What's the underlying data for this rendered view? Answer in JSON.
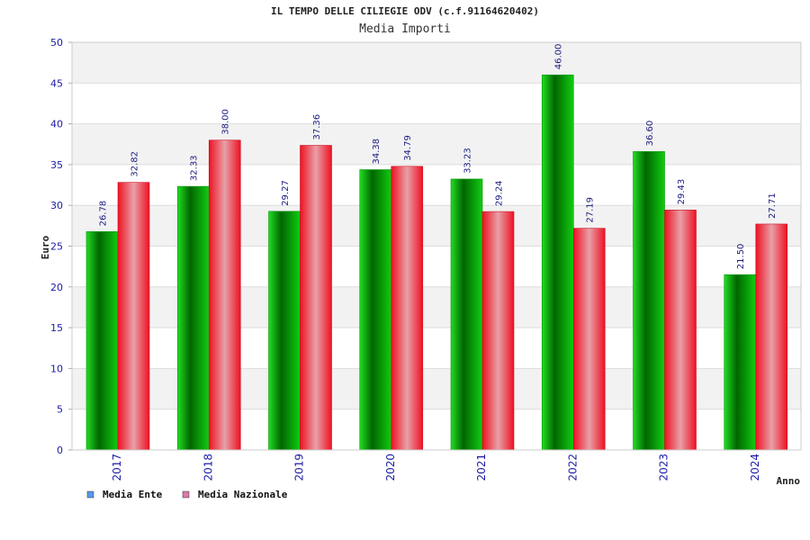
{
  "header": {
    "title": "IL TEMPO DELLE CILIEGIE ODV (c.f.91164620402)",
    "subtitle": "Media Importi"
  },
  "colors": {
    "series1_dark": "#006600",
    "series1_light": "#22dd22",
    "series2_dark": "#ee1122",
    "series2_light": "#e8a0a8",
    "legend1": "#5599ee",
    "legend2": "#dd77aa",
    "band": "#f2f2f2",
    "tick_text": "#1a1aa6"
  },
  "chart_data": {
    "type": "bar",
    "title": "Media Importi",
    "xlabel": "Anno",
    "ylabel": "Euro",
    "ylim": [
      0,
      50
    ],
    "yticks": [
      0,
      5,
      10,
      15,
      20,
      25,
      30,
      35,
      40,
      45,
      50
    ],
    "categories": [
      "2017",
      "2018",
      "2019",
      "2020",
      "2021",
      "2022",
      "2023",
      "2024"
    ],
    "series": [
      {
        "name": "Media Ente",
        "values": [
          26.78,
          32.33,
          29.27,
          34.38,
          33.23,
          46.0,
          36.6,
          21.5
        ],
        "labels": [
          "26.78",
          "32.33",
          "29.27",
          "34.38",
          "33.23",
          "46.00",
          "36.60",
          "21.50"
        ]
      },
      {
        "name": "Media Nazionale",
        "values": [
          32.82,
          38.0,
          37.36,
          34.79,
          29.24,
          27.19,
          29.43,
          27.71
        ],
        "labels": [
          "32.82",
          "38.00",
          "37.36",
          "34.79",
          "29.24",
          "27.19",
          "29.43",
          "27.71"
        ]
      }
    ],
    "grid": true,
    "legend_position": "bottom-left"
  }
}
